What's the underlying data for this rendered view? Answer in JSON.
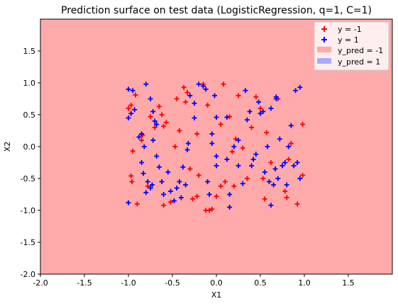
{
  "chart_data": {
    "type": "scatter",
    "title": "Prediction surface on test data (LogisticRegression, q=1, C=1)",
    "xlabel": "X1",
    "ylabel": "X2",
    "xlim": [
      -2.0,
      2.0
    ],
    "ylim": [
      -2.0,
      2.0
    ],
    "xticks": [
      "-2.0",
      "-1.5",
      "-1.0",
      "-0.5",
      "0.0",
      "0.5",
      "1.0",
      "1.5"
    ],
    "xtick_values": [
      -2.0,
      -1.5,
      -1.0,
      -0.5,
      0.0,
      0.5,
      1.0,
      1.5
    ],
    "yticks": [
      "-2.0",
      "-1.5",
      "-1.0",
      "-0.5",
      "0.0",
      "0.5",
      "1.0",
      "1.5"
    ],
    "ytick_values": [
      -2.0,
      -1.5,
      -1.0,
      -0.5,
      0.0,
      0.5,
      1.0,
      1.5
    ],
    "grid": false,
    "legend_position": "top-right",
    "background_region": {
      "label": "y_pred = -1",
      "color": "#ffaaaa",
      "covers": "entire plot area"
    },
    "legend": [
      {
        "label": "y = -1",
        "marker": "plus",
        "color": "#ff0000"
      },
      {
        "label": "y = 1",
        "marker": "plus",
        "color": "#0000ff"
      },
      {
        "label": "y_pred = -1",
        "marker": "patch",
        "color": "#ffaaaa"
      },
      {
        "label": "y_pred = 1",
        "marker": "patch",
        "color": "#aaaaff"
      }
    ],
    "series": [
      {
        "name": "y = -1",
        "color": "#ff0000",
        "points": [
          [
            -1.0,
            0.6
          ],
          [
            -0.97,
            0.65
          ],
          [
            -0.92,
            0.81
          ],
          [
            -0.95,
            -0.07
          ],
          [
            -0.97,
            -0.46
          ],
          [
            -0.96,
            -0.55
          ],
          [
            -0.9,
            -0.9
          ],
          [
            -0.85,
            0.1
          ],
          [
            -0.84,
            0.18
          ],
          [
            -0.78,
            -0.62
          ],
          [
            -0.75,
            0.47
          ],
          [
            -0.7,
            0.3
          ],
          [
            -0.65,
            0.63
          ],
          [
            -0.62,
            0.5
          ],
          [
            -0.6,
            0.32
          ],
          [
            -0.57,
            0.38
          ],
          [
            -0.6,
            -0.92
          ],
          [
            -0.52,
            -0.87
          ],
          [
            -0.47,
            0.0
          ],
          [
            -0.45,
            0.75
          ],
          [
            -0.42,
            0.25
          ],
          [
            -0.37,
            0.93
          ],
          [
            -0.33,
            0.85
          ],
          [
            -0.35,
            0.7
          ],
          [
            -0.3,
            -0.35
          ],
          [
            -0.27,
            -0.82
          ],
          [
            -0.22,
            -0.78
          ],
          [
            -0.2,
            -0.45
          ],
          [
            -0.22,
            0.2
          ],
          [
            -0.15,
            0.98
          ],
          [
            -0.1,
            0.65
          ],
          [
            -0.12,
            -1.0
          ],
          [
            -0.08,
            -1.0
          ],
          [
            -0.05,
            -0.98
          ],
          [
            0.0,
            -0.78
          ],
          [
            0.05,
            0.35
          ],
          [
            0.08,
            0.98
          ],
          [
            0.05,
            -0.62
          ],
          [
            0.1,
            -0.55
          ],
          [
            0.15,
            0.47
          ],
          [
            0.18,
            -0.08
          ],
          [
            0.2,
            -0.62
          ],
          [
            0.22,
            0.12
          ],
          [
            0.25,
            0.8
          ],
          [
            0.3,
            -0.02
          ],
          [
            0.35,
            -0.5
          ],
          [
            0.4,
            0.3
          ],
          [
            0.45,
            0.78
          ],
          [
            0.5,
            0.6
          ],
          [
            0.53,
            -0.5
          ],
          [
            0.55,
            -0.82
          ],
          [
            0.57,
            0.22
          ],
          [
            0.62,
            -0.25
          ],
          [
            0.7,
            0.75
          ],
          [
            0.78,
            -0.7
          ],
          [
            0.8,
            -0.8
          ],
          [
            0.82,
            -0.2
          ],
          [
            0.85,
            0.05
          ],
          [
            0.92,
            -0.9
          ],
          [
            0.98,
            0.35
          ],
          [
            0.98,
            -0.45
          ]
        ]
      },
      {
        "name": "y = 1",
        "color": "#0000ff",
        "points": [
          [
            -1.0,
            0.9
          ],
          [
            -0.95,
            0.88
          ],
          [
            -1.0,
            0.45
          ],
          [
            -0.97,
            0.52
          ],
          [
            -0.93,
            0.58
          ],
          [
            -0.88,
            0.15
          ],
          [
            -0.85,
            0.2
          ],
          [
            -0.82,
            0.0
          ],
          [
            -0.85,
            -0.25
          ],
          [
            -0.83,
            -0.42
          ],
          [
            -0.8,
            -0.72
          ],
          [
            -0.78,
            -0.55
          ],
          [
            -0.75,
            -0.65
          ],
          [
            -0.73,
            -0.6
          ],
          [
            -1.0,
            -0.88
          ],
          [
            -0.8,
            0.98
          ],
          [
            -0.75,
            0.75
          ],
          [
            -0.72,
            0.55
          ],
          [
            -0.7,
            0.4
          ],
          [
            -0.68,
            0.35
          ],
          [
            -0.72,
            0.1
          ],
          [
            -0.68,
            -0.15
          ],
          [
            -0.65,
            -0.32
          ],
          [
            -0.6,
            -0.75
          ],
          [
            -0.62,
            -0.55
          ],
          [
            -0.55,
            -0.4
          ],
          [
            -0.52,
            -0.7
          ],
          [
            -0.48,
            -0.85
          ],
          [
            -0.45,
            -0.65
          ],
          [
            -0.42,
            -0.55
          ],
          [
            -0.4,
            -0.8
          ],
          [
            -0.35,
            -0.6
          ],
          [
            -0.38,
            -0.32
          ],
          [
            -0.33,
            -0.05
          ],
          [
            -0.32,
            0.05
          ],
          [
            -0.3,
            0.8
          ],
          [
            -0.25,
            0.45
          ],
          [
            -0.25,
            0.68
          ],
          [
            -0.2,
            0.98
          ],
          [
            -0.15,
            0.95
          ],
          [
            -0.12,
            0.9
          ],
          [
            -0.1,
            -0.55
          ],
          [
            -0.08,
            -0.75
          ],
          [
            -0.05,
            0.2
          ],
          [
            -0.05,
            0.05
          ],
          [
            0.0,
            -0.15
          ],
          [
            0.0,
            -0.3
          ],
          [
            -0.02,
            0.8
          ],
          [
            0.0,
            0.46
          ],
          [
            0.12,
            0.46
          ],
          [
            0.12,
            -0.2
          ],
          [
            0.15,
            -0.95
          ],
          [
            0.15,
            -0.75
          ],
          [
            0.2,
            0.0
          ],
          [
            0.25,
            0.1
          ],
          [
            0.25,
            -0.3
          ],
          [
            0.3,
            -0.58
          ],
          [
            0.33,
            0.88
          ],
          [
            0.35,
            0.42
          ],
          [
            0.38,
            0.55
          ],
          [
            0.4,
            -0.3
          ],
          [
            0.42,
            -0.2
          ],
          [
            0.45,
            -0.12
          ],
          [
            0.48,
            0.7
          ],
          [
            0.5,
            0.52
          ],
          [
            0.53,
            0.55
          ],
          [
            0.55,
            -0.4
          ],
          [
            0.58,
            0.0
          ],
          [
            0.6,
            -0.55
          ],
          [
            0.62,
            -0.92
          ],
          [
            0.62,
            0.6
          ],
          [
            0.65,
            -0.6
          ],
          [
            0.67,
            -0.35
          ],
          [
            0.68,
            0.75
          ],
          [
            0.7,
            -0.5
          ],
          [
            0.72,
            0.12
          ],
          [
            0.75,
            -0.3
          ],
          [
            0.78,
            -0.25
          ],
          [
            0.8,
            -0.6
          ],
          [
            0.82,
            0.0
          ],
          [
            0.85,
            0.33
          ],
          [
            0.88,
            -0.3
          ],
          [
            0.9,
            0.88
          ],
          [
            0.92,
            -0.25
          ],
          [
            0.95,
            0.93
          ],
          [
            0.95,
            -0.5
          ],
          [
            0.68,
            0.78
          ]
        ]
      }
    ]
  }
}
